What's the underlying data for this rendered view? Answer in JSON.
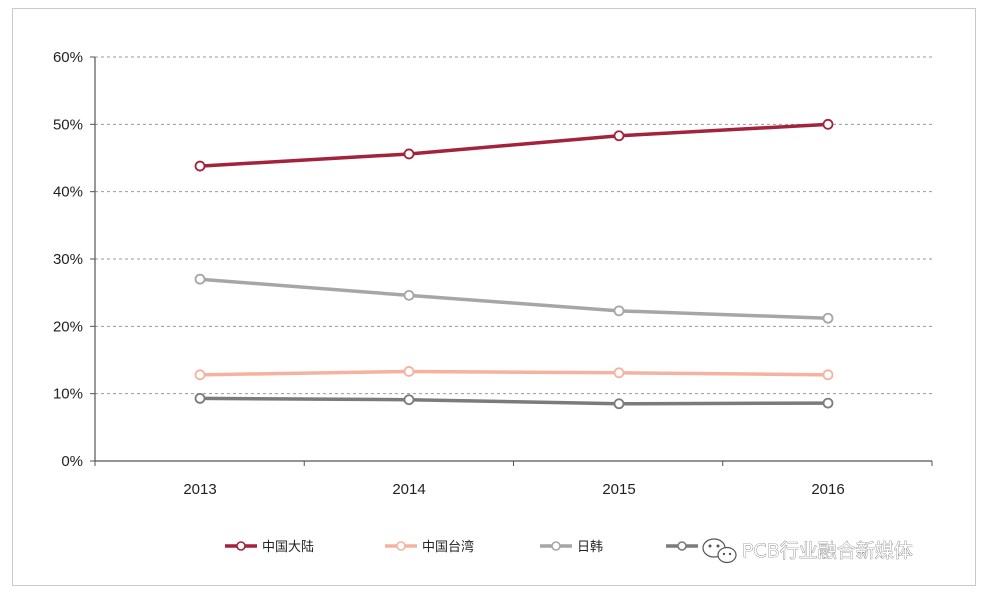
{
  "chart_data": {
    "type": "line",
    "categories": [
      "2013",
      "2014",
      "2015",
      "2016"
    ],
    "ylim": [
      0,
      60
    ],
    "yticks": [
      "0%",
      "10%",
      "20%",
      "30%",
      "40%",
      "50%",
      "60%"
    ],
    "grid": true,
    "legend_position": "bottom",
    "series": [
      {
        "name": "中国大陆",
        "color": "#a3223c",
        "values": [
          43.8,
          45.6,
          48.3,
          50.0
        ]
      },
      {
        "name": "中国台湾",
        "color": "#f5b39f",
        "values": [
          12.8,
          13.3,
          13.1,
          12.8
        ]
      },
      {
        "name": "日韩",
        "color": "#a6a6a6",
        "values": [
          27.0,
          24.6,
          22.3,
          21.2
        ]
      },
      {
        "name": "",
        "color": "#7b7b7b",
        "values": [
          9.3,
          9.1,
          8.5,
          8.6
        ]
      }
    ]
  },
  "watermark": {
    "text": "PCB行业融合新媒体",
    "icon": "wechat-icon"
  }
}
